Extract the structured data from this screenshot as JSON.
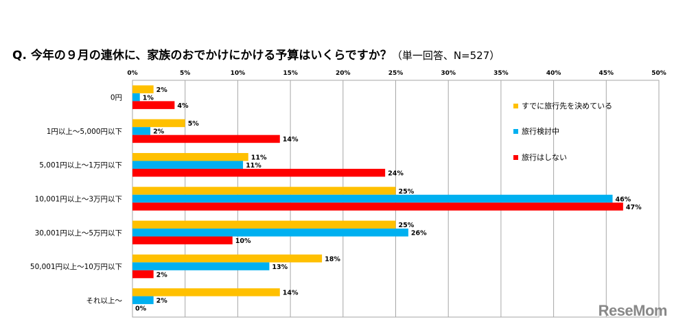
{
  "title": "Q. 今年の９月の連休に、家族のおでかけにかける予算はいくらですか？",
  "subtitle": "（単一回答、N=527）",
  "watermark": "ReseMom",
  "chart_data": {
    "type": "bar",
    "orientation": "horizontal",
    "categories": [
      "0円",
      "1円以上～5,000円以下",
      "5,001円以上～1万円以下",
      "10,001円以上～3万円以下",
      "30,001円以上～5万円以下",
      "50,001円以上～10万円以下",
      "それ以上～"
    ],
    "series": [
      {
        "name": "すでに旅行先を決めている",
        "color": "#FFC000",
        "values": [
          2,
          5,
          11,
          25,
          25,
          18,
          14
        ],
        "labels": [
          "2%",
          "5%",
          "11%",
          "25%",
          "25%",
          "18%",
          "14%"
        ]
      },
      {
        "name": "旅行検討中",
        "color": "#00B0F0",
        "values": [
          0.7,
          1.7,
          10.5,
          45.6,
          26.2,
          13,
          2
        ],
        "labels": [
          "1%",
          "2%",
          "11%",
          "46%",
          "26%",
          "13%",
          "2%"
        ]
      },
      {
        "name": "旅行はしない",
        "color": "#FF0000",
        "values": [
          4,
          14,
          24,
          46.6,
          9.5,
          2,
          0
        ],
        "labels": [
          "4%",
          "14%",
          "24%",
          "47%",
          "10%",
          "2%",
          "0%"
        ]
      }
    ],
    "xlim": [
      0,
      50
    ],
    "xticks": [
      "0%",
      "5%",
      "10%",
      "15%",
      "20%",
      "25%",
      "30%",
      "35%",
      "40%",
      "45%",
      "50%"
    ],
    "grid": true,
    "legend_position": "right"
  }
}
